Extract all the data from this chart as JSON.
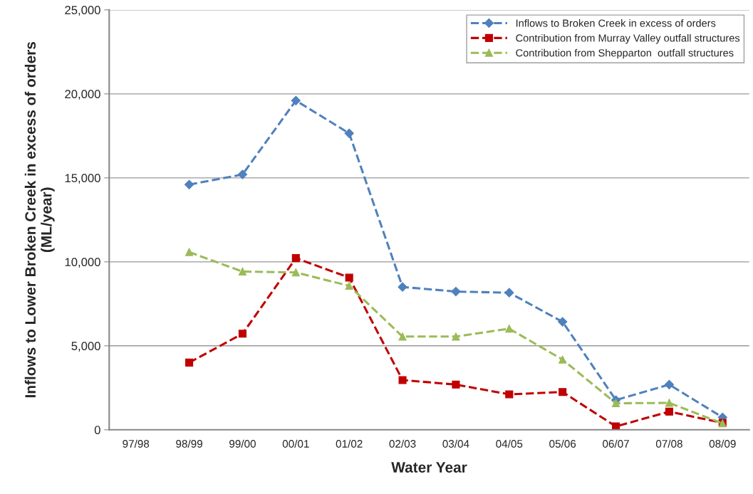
{
  "chart_data": {
    "type": "line",
    "xlabel": "Water Year",
    "ylabel": "Inflows to Lower Broken Creek in excess of orders\n(ML/year)",
    "categories": [
      "97/98",
      "98/99",
      "99/00",
      "00/01",
      "01/02",
      "02/03",
      "03/04",
      "04/05",
      "05/06",
      "06/07",
      "07/08",
      "08/09"
    ],
    "series": [
      {
        "name": "Inflows to Broken Creek in excess of orders",
        "color": "#4f81bd",
        "marker": "diamond",
        "values": [
          null,
          14600,
          15200,
          19600,
          17650,
          8500,
          8230,
          8160,
          6430,
          1770,
          2690,
          740
        ]
      },
      {
        "name": "Contribution from Murray Valley outfall structures",
        "color": "#c00000",
        "marker": "square",
        "values": [
          null,
          4000,
          5720,
          10220,
          9060,
          2960,
          2690,
          2110,
          2250,
          200,
          1080,
          410
        ]
      },
      {
        "name": "Contribution from Shepparton  outfall structures",
        "color": "#9bbb59",
        "marker": "triangle",
        "values": [
          null,
          10580,
          9420,
          9370,
          8570,
          5550,
          5550,
          6020,
          4180,
          1580,
          1600,
          380
        ]
      }
    ],
    "ylim": [
      0,
      25000
    ],
    "yticks": [
      {
        "value": 0,
        "label": "0"
      },
      {
        "value": 5000,
        "label": "5,000"
      },
      {
        "value": 10000,
        "label": "10,000"
      },
      {
        "value": 15000,
        "label": "15,000"
      },
      {
        "value": 20000,
        "label": "20,000"
      },
      {
        "value": 25000,
        "label": "25,000"
      }
    ],
    "grid": "y",
    "legend": "top right",
    "line_style": "dashed"
  }
}
